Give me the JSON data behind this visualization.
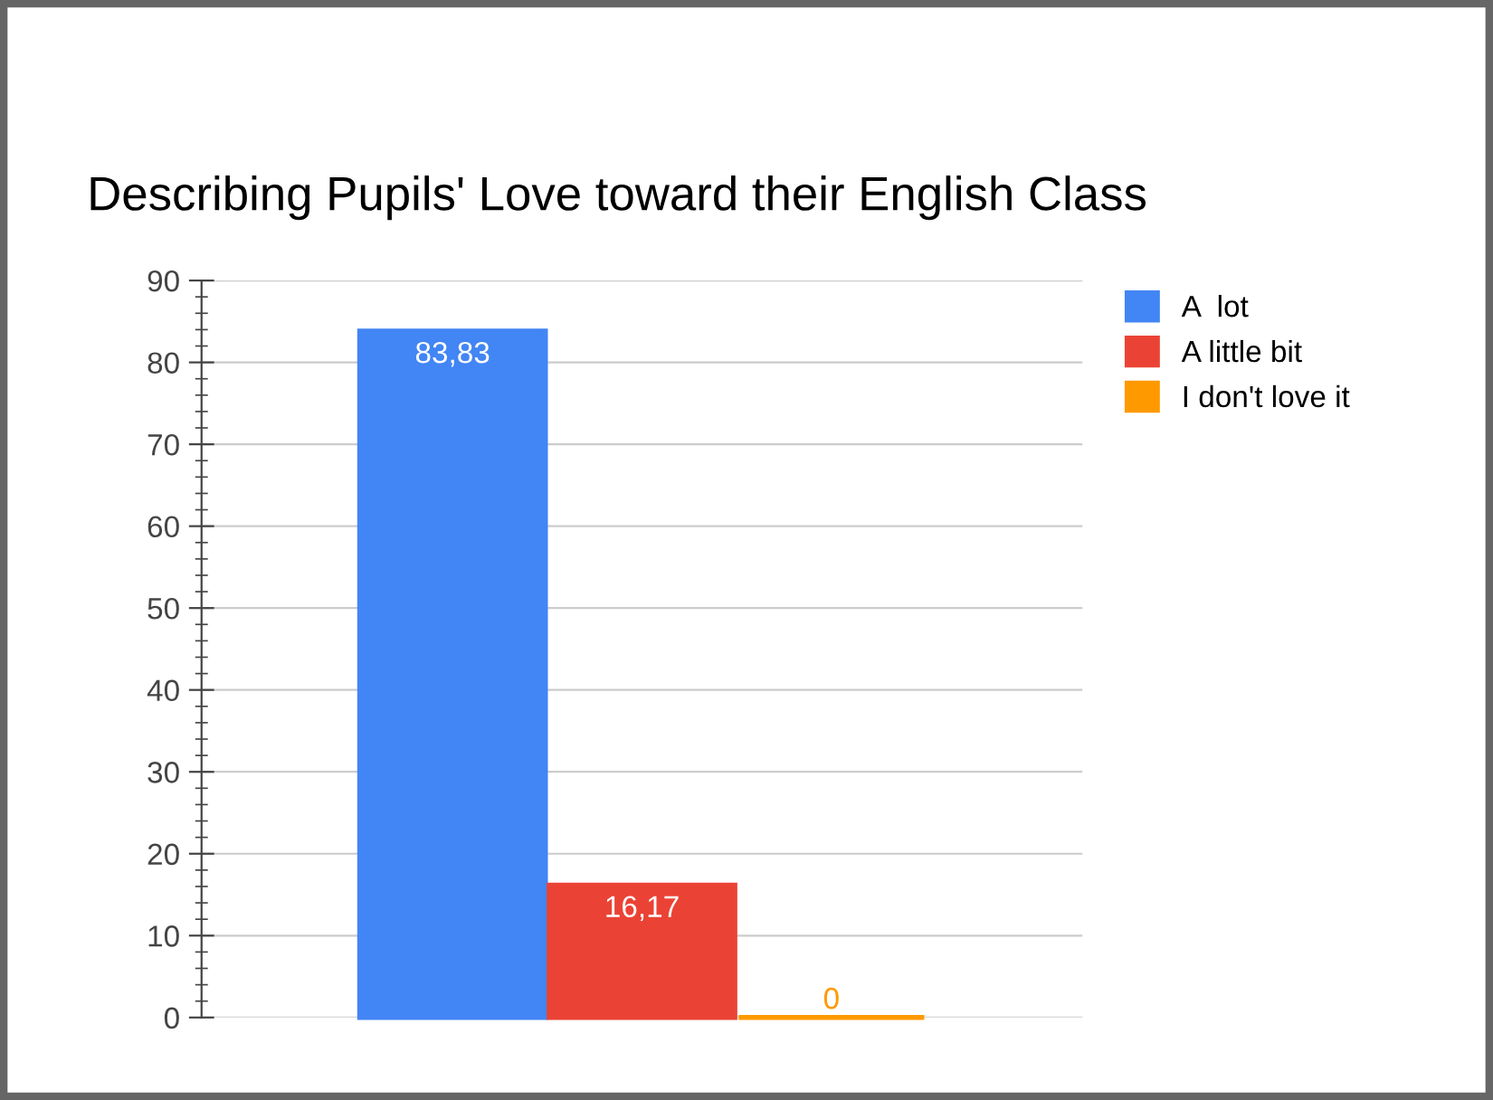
{
  "chart_data": {
    "type": "bar",
    "title": "Describing Pupils' Love toward their English Class",
    "categories": [
      null
    ],
    "series": [
      {
        "name": "A  lot",
        "color": "#4285f4",
        "values": [
          83.83
        ],
        "value_labels": [
          "83,83"
        ]
      },
      {
        "name": "A little bit",
        "color": "#ea4335",
        "values": [
          16.17
        ],
        "value_labels": [
          "16,17"
        ]
      },
      {
        "name": "I don't love it",
        "color": "#ff9900",
        "values": [
          0
        ],
        "value_labels": [
          "0"
        ]
      }
    ],
    "ylim": [
      0,
      90
    ],
    "yticks": [
      0,
      10,
      20,
      30,
      40,
      50,
      60,
      70,
      80,
      90
    ],
    "grid": "y",
    "legend": "top right"
  }
}
